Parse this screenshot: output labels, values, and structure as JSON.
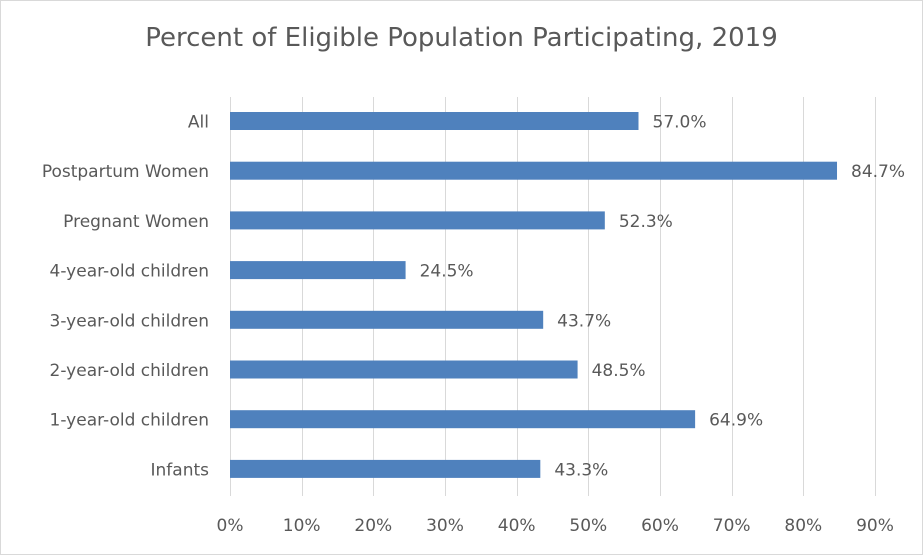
{
  "chart_data": {
    "type": "bar",
    "orientation": "horizontal",
    "title": "Percent of Eligible Population Participating, 2019",
    "xlabel": "",
    "ylabel": "",
    "categories": [
      "All",
      "Postpartum Women",
      "Pregnant Women",
      "4-year-old children",
      "3-year-old children",
      "2-year-old children",
      "1-year-old children",
      "Infants"
    ],
    "values": [
      57.0,
      84.7,
      52.3,
      24.5,
      43.7,
      48.5,
      64.9,
      43.3
    ],
    "data_labels": [
      "57.0%",
      "84.7%",
      "52.3%",
      "24.5%",
      "43.7%",
      "48.5%",
      "64.9%",
      "43.3%"
    ],
    "xlim": [
      0,
      90
    ],
    "x_ticks": [
      0,
      10,
      20,
      30,
      40,
      50,
      60,
      70,
      80,
      90
    ],
    "x_tick_labels": [
      "0%",
      "10%",
      "20%",
      "30%",
      "40%",
      "50%",
      "60%",
      "70%",
      "80%",
      "90%"
    ],
    "grid": "vertical",
    "legend": "none",
    "bar_color": "#4f81bd",
    "gridline_color": "#d9d9d9"
  }
}
